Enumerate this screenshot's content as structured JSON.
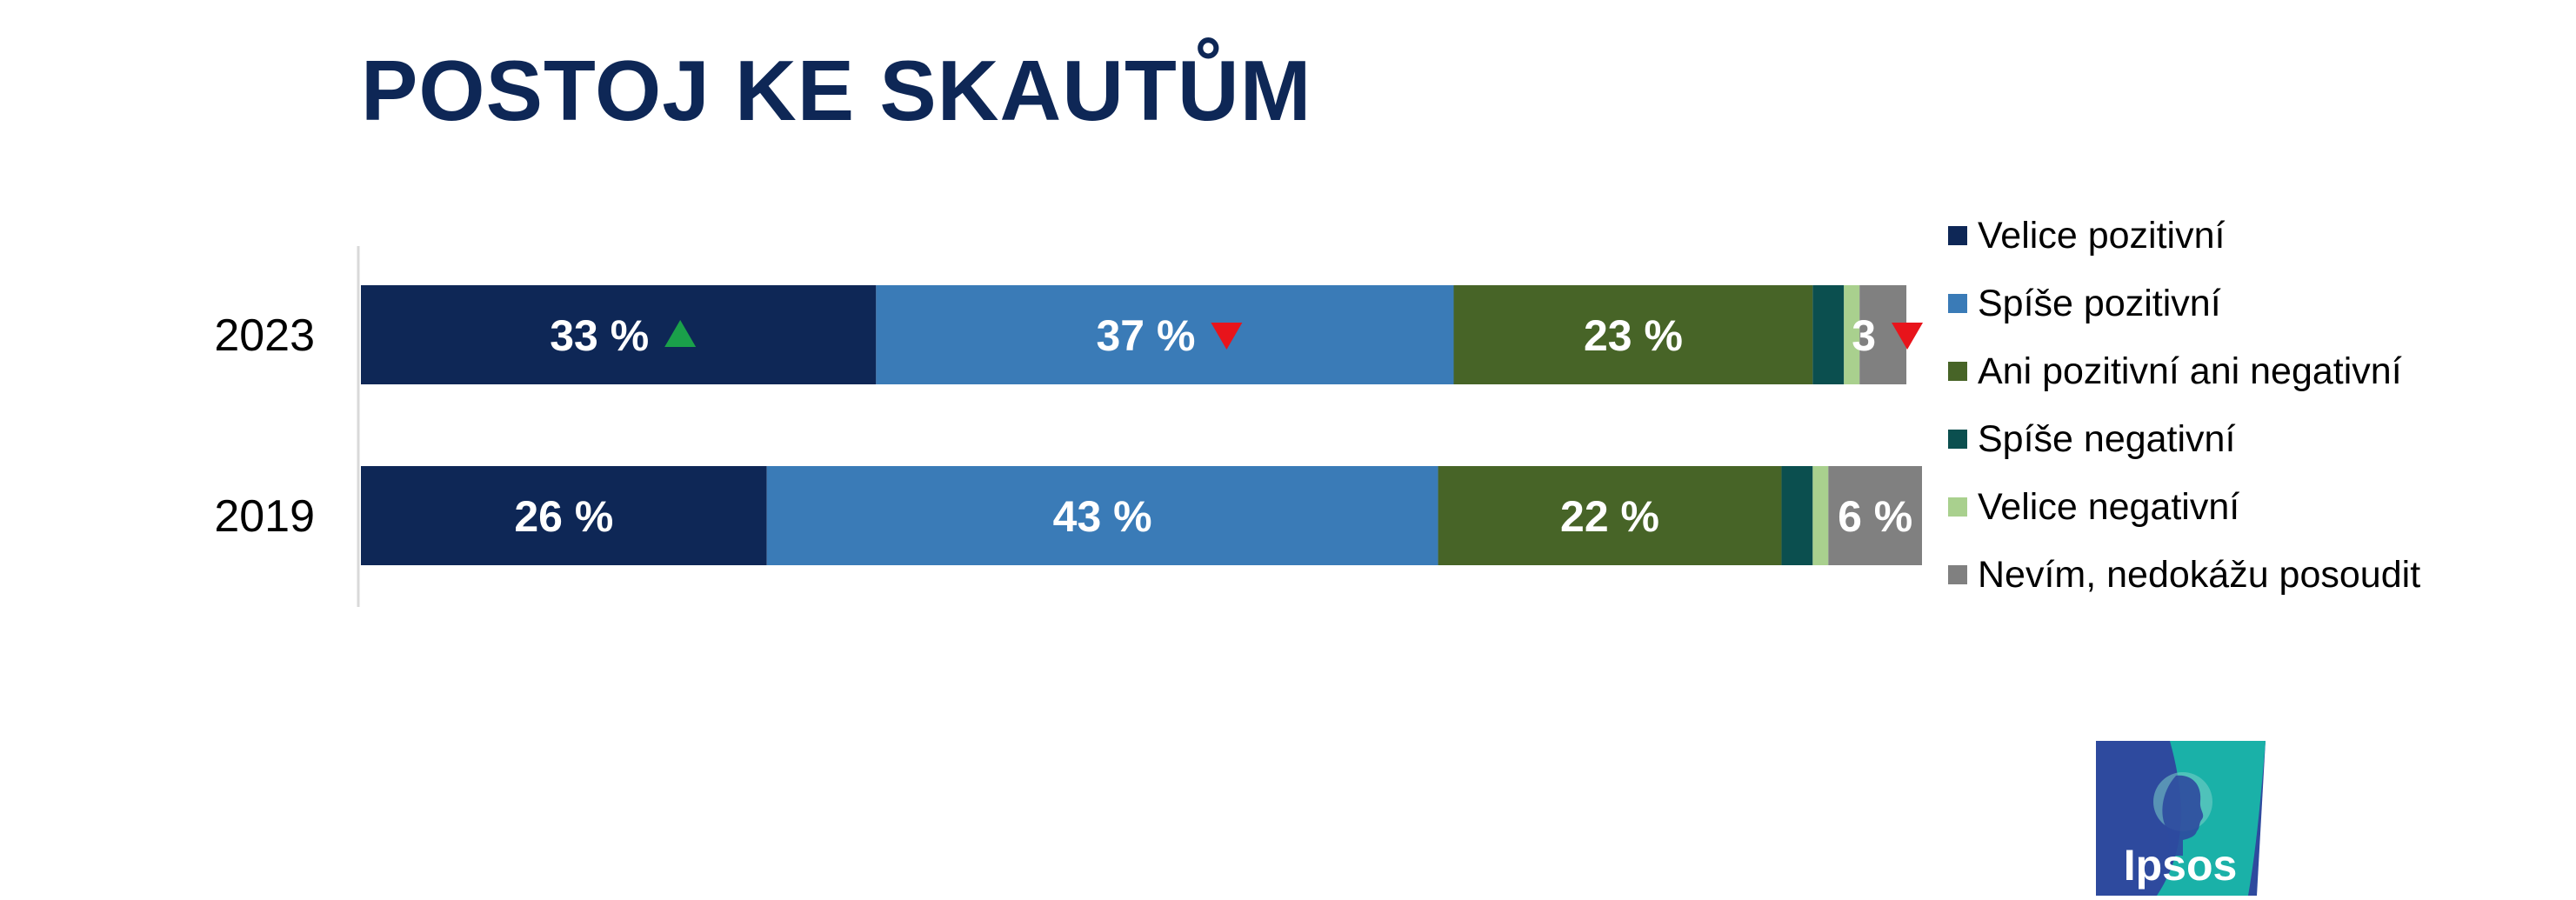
{
  "title": "POSTOJ KE SKAUTŮM",
  "logo_text": "Ipsos",
  "colors": {
    "title": "#0e2756",
    "velice_pozitivni": "#0e2756",
    "spise_pozitivni": "#3a7bb7",
    "ani": "#476427",
    "spise_negativni": "#0b4f4f",
    "velice_negativni": "#a9d08e",
    "nevim": "#808080",
    "up_arrow": "#1aa04a",
    "down_arrow": "#e8141b",
    "logo_blue": "#2e4a9e",
    "logo_teal": "#1ab1a8"
  },
  "chart_data": {
    "type": "bar",
    "orientation": "horizontal",
    "stacked": true,
    "categories": [
      "2023",
      "2019"
    ],
    "xlim": [
      0,
      100
    ],
    "legend_position": "right",
    "series": [
      {
        "name": "Velice pozitivní",
        "values": [
          33,
          26
        ],
        "labels": [
          "33 %",
          "26 %"
        ],
        "markers": [
          "up",
          ""
        ],
        "color": "#0e2756"
      },
      {
        "name": "Spíše pozitivní",
        "values": [
          37,
          43
        ],
        "labels": [
          "37 %",
          "43 %"
        ],
        "markers": [
          "down",
          ""
        ],
        "color": "#3a7bb7"
      },
      {
        "name": "Ani pozitivní ani negativní",
        "values": [
          23,
          22
        ],
        "labels": [
          "23 %",
          "22 %"
        ],
        "markers": [
          "",
          ""
        ],
        "color": "#476427"
      },
      {
        "name": "Spíše negativní",
        "values": [
          2,
          2
        ],
        "labels": [
          "",
          ""
        ],
        "markers": [
          "",
          ""
        ],
        "color": "#0b4f4f"
      },
      {
        "name": "Velice negativní",
        "values": [
          1,
          1
        ],
        "labels": [
          "",
          ""
        ],
        "markers": [
          "",
          ""
        ],
        "color": "#a9d08e"
      },
      {
        "name": "Nevím, nedokážu posoudit",
        "values": [
          3,
          6
        ],
        "labels": [
          "3",
          "6 %"
        ],
        "markers": [
          "down",
          ""
        ],
        "color": "#808080"
      }
    ]
  }
}
